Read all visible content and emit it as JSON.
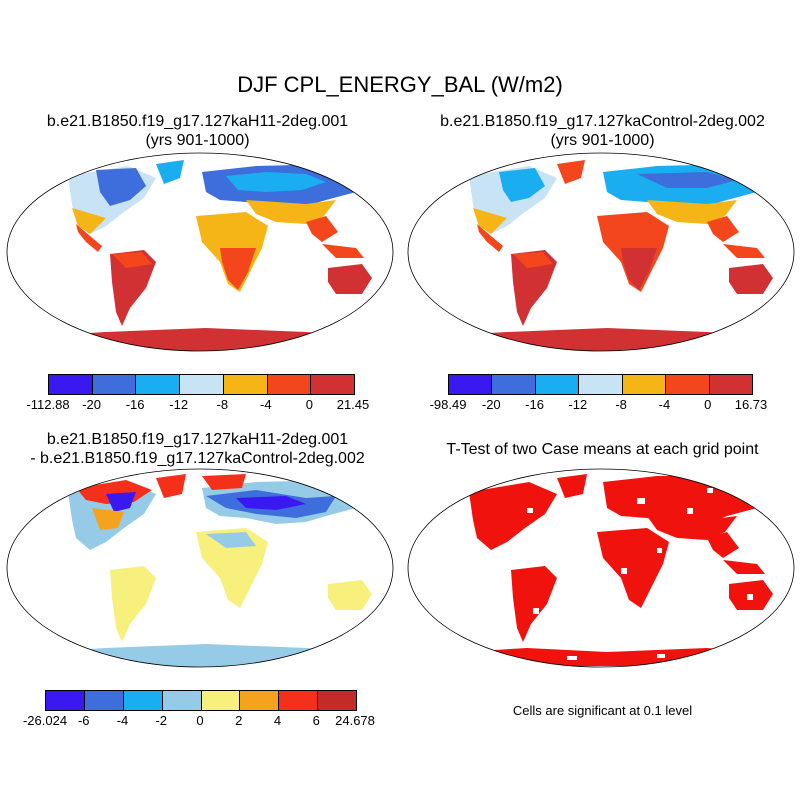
{
  "title": "DJF CPL_ENERGY_BAL (W/m2)",
  "panels": {
    "case1": {
      "title": "b.e21.B1850.f19_g17.127kaH11-2deg.001",
      "subtitle": "(yrs 901-1000)",
      "colorbar": {
        "colors": [
          "#3a18f0",
          "#3e6ddc",
          "#1aaef0",
          "#c8e3f3",
          "#f5b516",
          "#f4461d",
          "#d13132"
        ],
        "labels": [
          "-112.88",
          "-20",
          "-16",
          "-12",
          "-8",
          "-4",
          "0",
          "21.45"
        ]
      }
    },
    "case2": {
      "title": "b.e21.B1850.f19_g17.127kaControl-2deg.002",
      "subtitle": "(yrs 901-1000)",
      "colorbar": {
        "colors": [
          "#3a18f0",
          "#3e6ddc",
          "#1aaef0",
          "#c8e3f3",
          "#f5b516",
          "#f4461d",
          "#d13132"
        ],
        "labels": [
          "-98.49",
          "-20",
          "-16",
          "-12",
          "-8",
          "-4",
          "0",
          "16.73"
        ]
      }
    },
    "diff": {
      "title_line1": "b.e21.B1850.f19_g17.127kaH11-2deg.001",
      "title_line2": "- b.e21.B1850.f19_g17.127kaControl-2deg.002",
      "colorbar": {
        "colors": [
          "#3a18f0",
          "#3e6ddc",
          "#1aaef0",
          "#96cbe8",
          "#f8f07c",
          "#f5a21e",
          "#f5301a",
          "#c52a2a"
        ],
        "labels": [
          "-26.024",
          "-6",
          "-4",
          "-2",
          "0",
          "2",
          "4",
          "6",
          "24.678"
        ]
      }
    },
    "ttest": {
      "title": "T-Test of two Case means at each grid point",
      "note": "Cells are significant at 0.1 level",
      "color": "#f0120c"
    }
  },
  "map_colors": {
    "land_cold": "#3e6ddc",
    "land_cool": "#1aaef0",
    "land_mild": "#c8e3f3",
    "land_orange": "#f5b516",
    "land_red": "#f4461d",
    "land_darkred": "#d13132",
    "diff_yellow": "#f8f07c",
    "diff_lightblue": "#96cbe8"
  }
}
